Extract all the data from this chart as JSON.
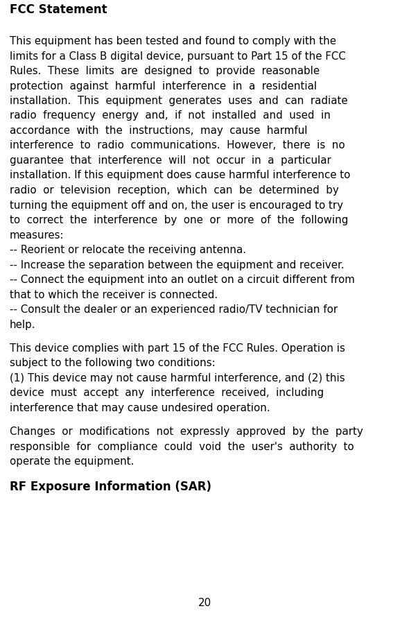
{
  "page_number": "20",
  "background_color": "#ffffff",
  "text_color": "#000000",
  "title": "FCC Statement",
  "title_fontsize": 12.0,
  "body_fontsize": 10.8,
  "subtitle": "RF Exposure Information (SAR)",
  "subtitle_fontsize": 12.0,
  "para1_lines": [
    "This equipment has been tested and found to comply with the",
    "limits for a Class B digital device, pursuant to Part 15 of the FCC",
    "Rules.  These  limits  are  designed  to  provide  reasonable",
    "protection  against  harmful  interference  in  a  residential",
    "installation.  This  equipment  generates  uses  and  can  radiate",
    "radio  frequency  energy  and,  if  not  installed  and  used  in",
    "accordance  with  the  instructions,  may  cause  harmful",
    "interference  to  radio  communications.  However,  there  is  no",
    "guarantee  that  interference  will  not  occur  in  a  particular",
    "installation. If this equipment does cause harmful interference to",
    "radio  or  television  reception,  which  can  be  determined  by",
    "turning the equipment off and on, the user is encouraged to try",
    "to  correct  the  interference  by  one  or  more  of  the  following",
    "measures:"
  ],
  "bullet_lines": [
    "-- Reorient or relocate the receiving antenna.",
    "-- Increase the separation between the equipment and receiver.",
    "-- Connect the equipment into an outlet on a circuit different from",
    "that to which the receiver is connected.",
    "-- Consult the dealer or an experienced radio/TV technician for",
    "help."
  ],
  "para2_lines": [
    "This device complies with part 15 of the FCC Rules. Operation is",
    "subject to the following two conditions:",
    "(1) This device may not cause harmful interference, and (2) this",
    "device  must  accept  any  interference  received,  including",
    "interference that may cause undesired operation."
  ],
  "para3_lines": [
    "Changes  or  modifications  not  expressly  approved  by  the  party",
    "responsible  for  compliance  could  void  the  user's  authority  to",
    "operate the equipment."
  ]
}
